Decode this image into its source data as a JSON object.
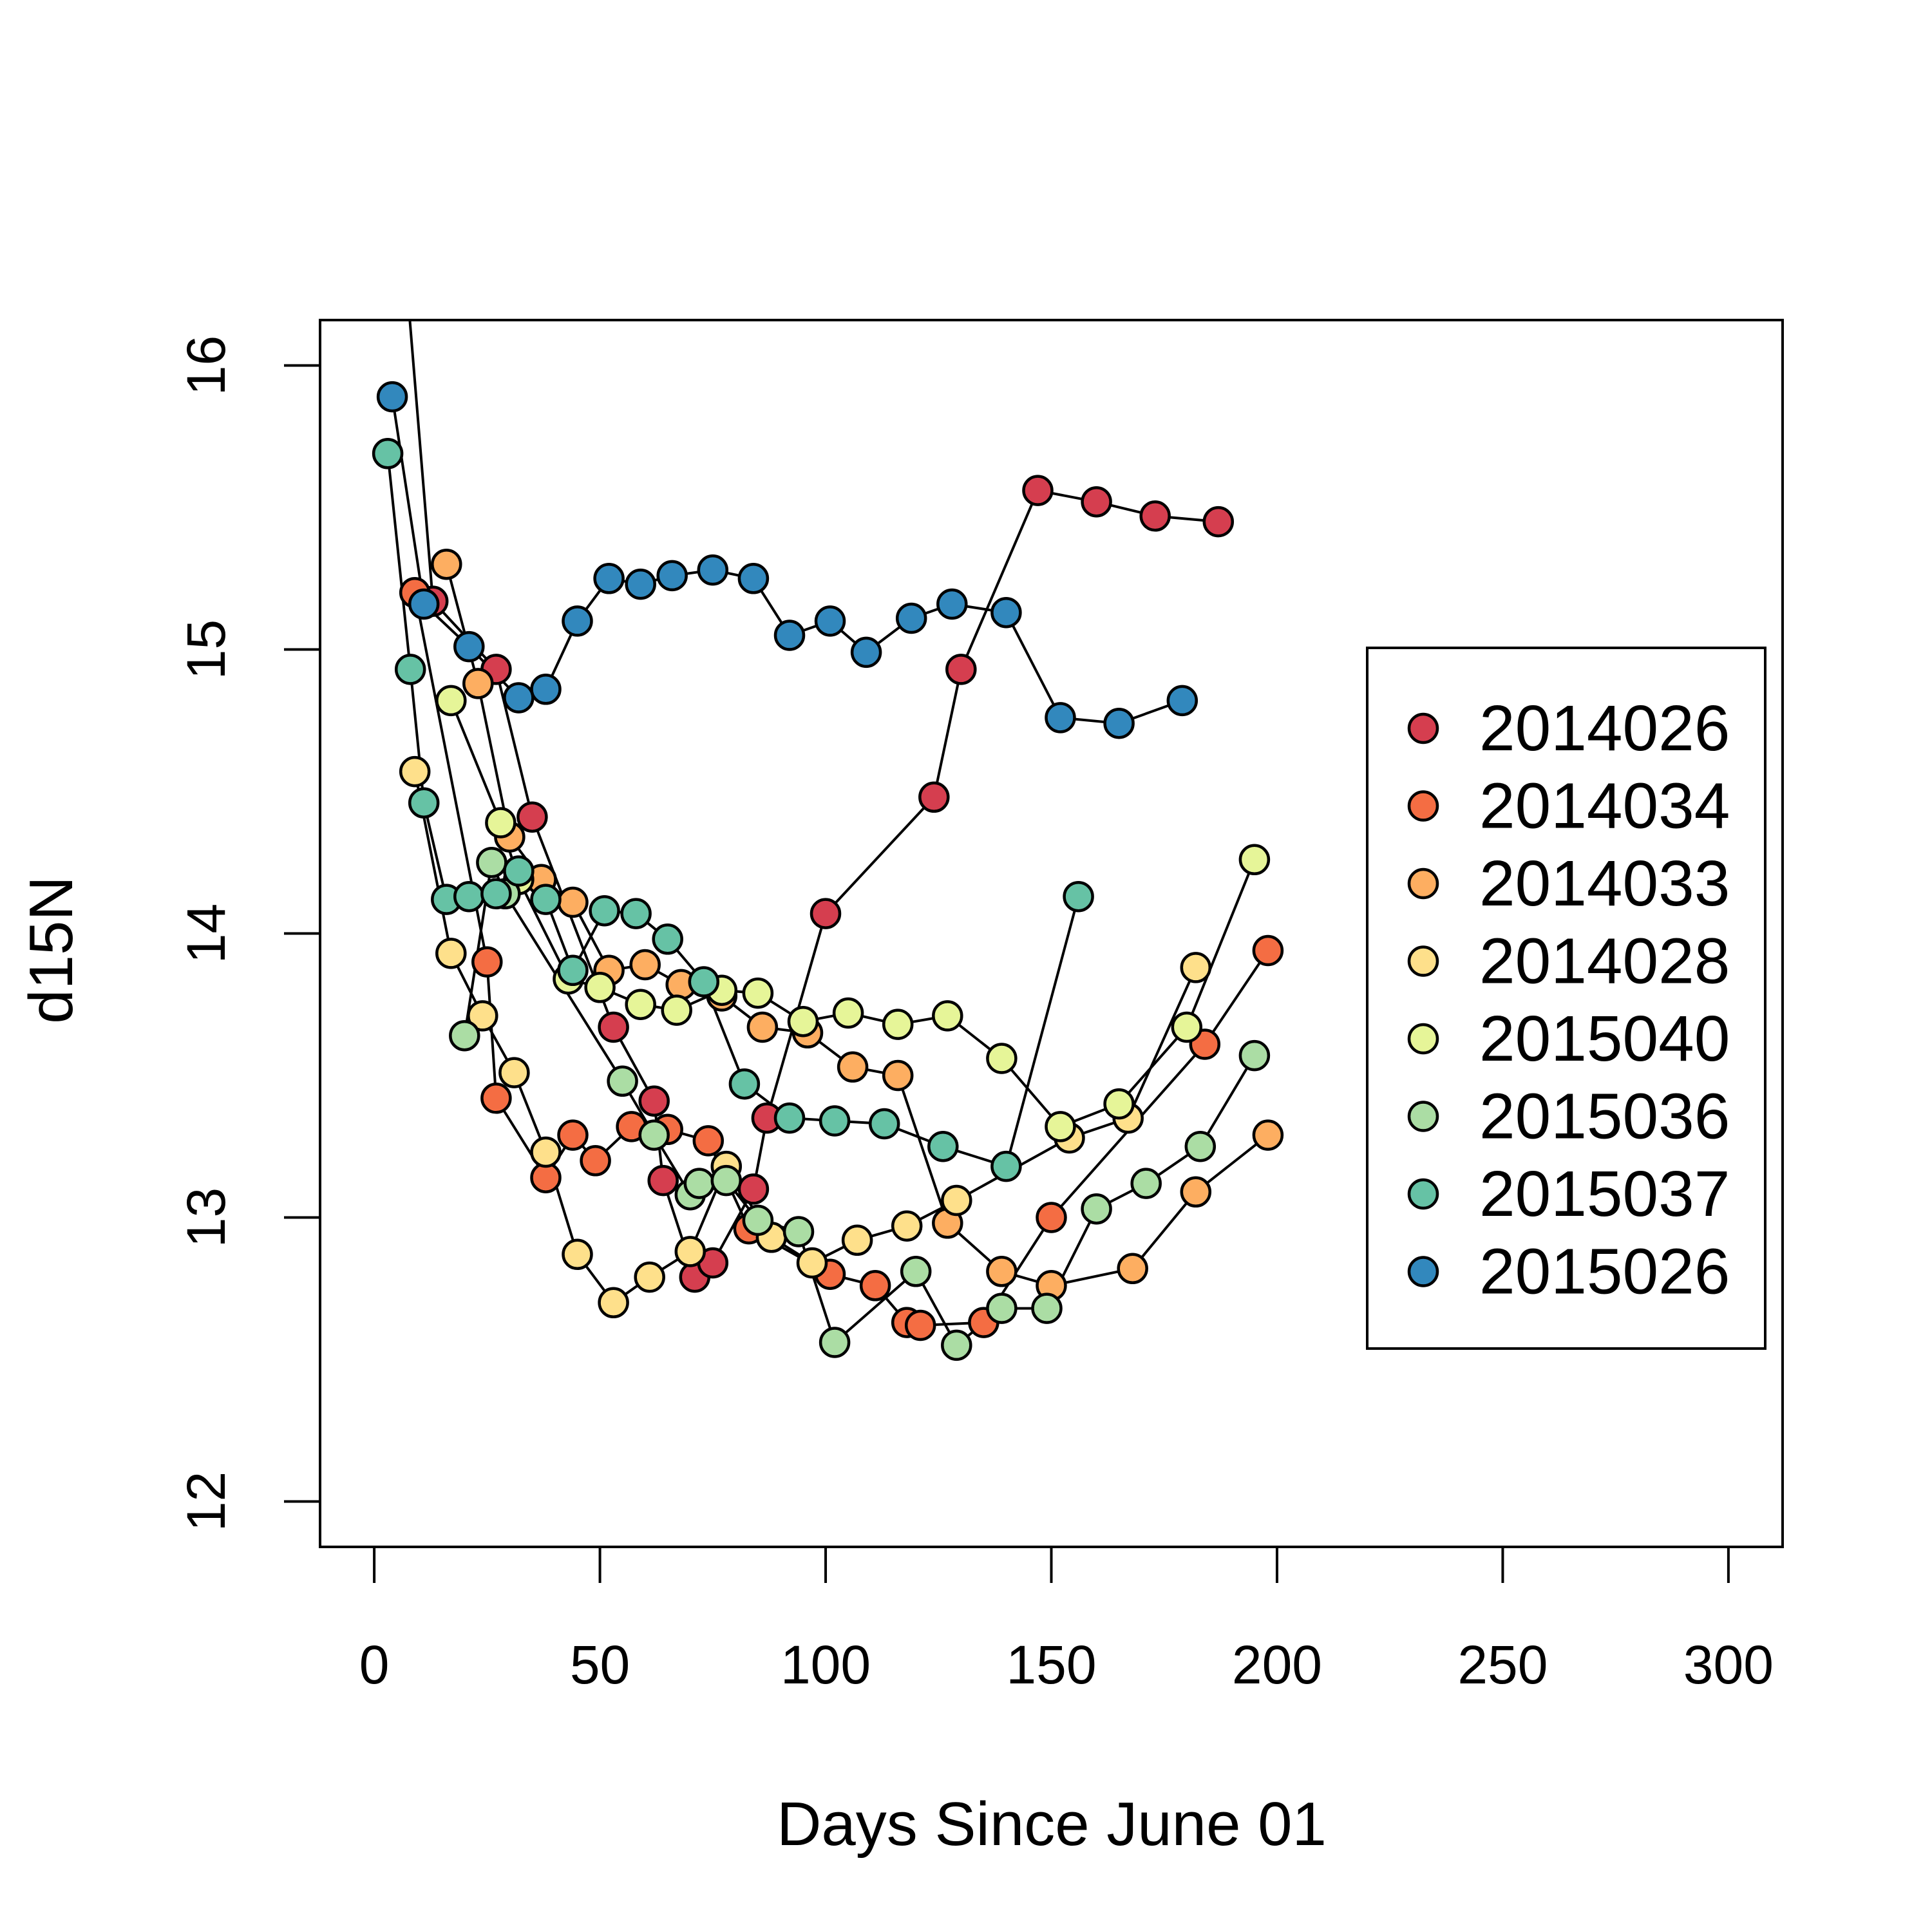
{
  "chart_data": {
    "type": "line",
    "title": "",
    "xlabel": "Days Since June 01",
    "ylabel": "d15N",
    "xlim": [
      -12,
      312
    ],
    "ylim": [
      11.84,
      16.16
    ],
    "x_ticks": [
      0,
      50,
      100,
      150,
      200,
      250,
      300
    ],
    "x_tick_labels": [
      "0",
      "50",
      "100",
      "150",
      "200",
      "250",
      "300"
    ],
    "y_ticks": [
      12,
      13,
      14,
      15,
      16
    ],
    "y_tick_labels": [
      "12",
      "13",
      "14",
      "15",
      "16"
    ],
    "grid": false,
    "legend_position": "right",
    "marker": "circle",
    "line_color": "#000000",
    "series": [
      {
        "name": "2014026",
        "color": "#D53E4F",
        "points": [
          [
            2,
            17.3
          ],
          [
            13,
            15.17
          ],
          [
            27,
            14.93
          ],
          [
            35,
            14.41
          ],
          [
            53,
            13.67
          ],
          [
            62,
            13.41
          ],
          [
            64,
            13.13
          ],
          [
            71,
            12.79
          ],
          [
            75,
            12.84
          ],
          [
            84,
            13.1
          ],
          [
            87,
            13.35
          ],
          [
            100,
            14.07
          ],
          [
            124,
            14.48
          ],
          [
            130,
            14.93
          ],
          [
            147,
            15.56
          ],
          [
            160,
            15.52
          ],
          [
            173,
            15.47
          ],
          [
            187,
            15.45
          ]
        ]
      },
      {
        "name": "2014034",
        "color": "#F46D43",
        "points": [
          [
            9,
            15.2
          ],
          [
            25,
            13.9
          ],
          [
            27,
            13.42
          ],
          [
            38,
            13.14
          ],
          [
            44,
            13.29
          ],
          [
            49,
            13.2
          ],
          [
            57,
            13.32
          ],
          [
            65,
            13.31
          ],
          [
            74,
            13.27
          ],
          [
            83,
            12.96
          ],
          [
            101,
            12.8
          ],
          [
            111,
            12.76
          ],
          [
            118,
            12.63
          ],
          [
            121,
            12.62
          ],
          [
            135,
            12.63
          ],
          [
            150,
            13.0
          ],
          [
            184,
            13.61
          ],
          [
            198,
            13.94
          ]
        ]
      },
      {
        "name": "2014033",
        "color": "#FDAE61",
        "points": [
          [
            16,
            15.3
          ],
          [
            23,
            14.88
          ],
          [
            30,
            14.34
          ],
          [
            37,
            14.19
          ],
          [
            44,
            14.11
          ],
          [
            52,
            13.87
          ],
          [
            60,
            13.89
          ],
          [
            68,
            13.82
          ],
          [
            77,
            13.78
          ],
          [
            86,
            13.67
          ],
          [
            96,
            13.65
          ],
          [
            106,
            13.53
          ],
          [
            116,
            13.5
          ],
          [
            127,
            12.98
          ],
          [
            139,
            12.81
          ],
          [
            150,
            12.76
          ],
          [
            168,
            12.82
          ],
          [
            182,
            13.09
          ],
          [
            198,
            13.29
          ]
        ]
      },
      {
        "name": "2014028",
        "color": "#FEE08B",
        "points": [
          [
            9,
            14.57
          ],
          [
            17,
            13.93
          ],
          [
            24,
            13.71
          ],
          [
            31,
            13.51
          ],
          [
            38,
            13.23
          ],
          [
            45,
            12.87
          ],
          [
            53,
            12.7
          ],
          [
            61,
            12.79
          ],
          [
            70,
            12.88
          ],
          [
            78,
            13.18
          ],
          [
            88,
            12.93
          ],
          [
            97,
            12.84
          ],
          [
            107,
            12.92
          ],
          [
            118,
            12.97
          ],
          [
            129,
            13.06
          ],
          [
            154,
            13.28
          ],
          [
            167,
            13.35
          ],
          [
            182,
            13.88
          ]
        ]
      },
      {
        "name": "2015040",
        "color": "#E6F598",
        "points": [
          [
            17,
            14.82
          ],
          [
            28,
            14.39
          ],
          [
            32,
            14.19
          ],
          [
            43,
            13.84
          ],
          [
            50,
            13.81
          ],
          [
            59,
            13.75
          ],
          [
            67,
            13.73
          ],
          [
            77,
            13.8
          ],
          [
            85,
            13.79
          ],
          [
            95,
            13.69
          ],
          [
            105,
            13.72
          ],
          [
            116,
            13.68
          ],
          [
            127,
            13.71
          ],
          [
            139,
            13.56
          ],
          [
            152,
            13.32
          ],
          [
            165,
            13.4
          ],
          [
            180,
            13.67
          ],
          [
            195,
            14.26
          ]
        ]
      },
      {
        "name": "2015036",
        "color": "#ABDDA4",
        "points": [
          [
            20,
            13.64
          ],
          [
            26,
            14.25
          ],
          [
            29,
            14.14
          ],
          [
            55,
            13.48
          ],
          [
            62,
            13.29
          ],
          [
            70,
            13.08
          ],
          [
            72,
            13.12
          ],
          [
            78,
            13.13
          ],
          [
            85,
            12.99
          ],
          [
            94,
            12.95
          ],
          [
            102,
            12.56
          ],
          [
            120,
            12.81
          ],
          [
            129,
            12.55
          ],
          [
            139,
            12.68
          ],
          [
            149,
            12.68
          ],
          [
            160,
            13.03
          ],
          [
            171,
            13.12
          ],
          [
            183,
            13.25
          ],
          [
            195,
            13.57
          ]
        ]
      },
      {
        "name": "2015037",
        "color": "#66C2A5",
        "points": [
          [
            3,
            15.69
          ],
          [
            8,
            14.93
          ],
          [
            11,
            14.46
          ],
          [
            16,
            14.12
          ],
          [
            21,
            14.13
          ],
          [
            27,
            14.14
          ],
          [
            32,
            14.22
          ],
          [
            38,
            14.12
          ],
          [
            44,
            13.87
          ],
          [
            51,
            14.08
          ],
          [
            58,
            14.07
          ],
          [
            65,
            13.98
          ],
          [
            73,
            13.83
          ],
          [
            82,
            13.47
          ],
          [
            92,
            13.35
          ],
          [
            102,
            13.34
          ],
          [
            113,
            13.33
          ],
          [
            126,
            13.25
          ],
          [
            140,
            13.18
          ],
          [
            156,
            14.13
          ]
        ]
      },
      {
        "name": "2015026",
        "color": "#3288BD",
        "points": [
          [
            4,
            15.89
          ],
          [
            11,
            15.16
          ],
          [
            21,
            15.01
          ],
          [
            32,
            14.83
          ],
          [
            38,
            14.86
          ],
          [
            45,
            15.1
          ],
          [
            52,
            15.25
          ],
          [
            59,
            15.23
          ],
          [
            66,
            15.26
          ],
          [
            75,
            15.28
          ],
          [
            84,
            15.25
          ],
          [
            92,
            15.05
          ],
          [
            101,
            15.1
          ],
          [
            109,
            14.99
          ],
          [
            119,
            15.11
          ],
          [
            128,
            15.16
          ],
          [
            140,
            15.13
          ],
          [
            152,
            14.76
          ],
          [
            165,
            14.74
          ],
          [
            179,
            14.82
          ]
        ]
      }
    ]
  }
}
